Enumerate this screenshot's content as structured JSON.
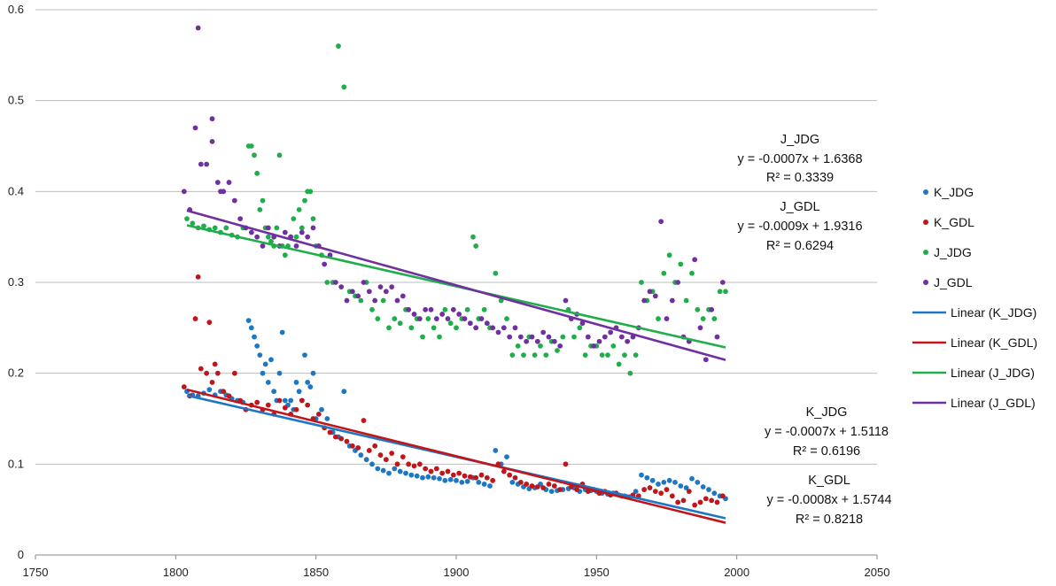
{
  "chart_data": {
    "type": "scatter",
    "title": "",
    "xlabel": "",
    "ylabel": "",
    "xlim": [
      1750,
      2050
    ],
    "ylim": [
      0,
      0.6
    ],
    "x_ticks": [
      1750,
      1800,
      1850,
      1900,
      1950,
      2000,
      2050
    ],
    "y_ticks": [
      0,
      0.1,
      0.2,
      0.3,
      0.4,
      0.5,
      0.6
    ],
    "x_tick_labels": [
      "1750",
      "1800",
      "1850",
      "1900",
      "1950",
      "2000",
      "2050"
    ],
    "y_tick_labels": [
      "0",
      "0.1",
      "0.2",
      "0.3",
      "0.4",
      "0.5",
      "0.6"
    ],
    "grid": "horizontal",
    "legend_position": "right",
    "series": [
      {
        "name": "K_JDG",
        "color": "#1f77c4",
        "x": [
          1804,
          1806,
          1808,
          1810,
          1812,
          1814,
          1816,
          1818,
          1820,
          1822,
          1824,
          1826,
          1827,
          1828,
          1829,
          1830,
          1831,
          1832,
          1833,
          1834,
          1835,
          1836,
          1837,
          1838,
          1839,
          1840,
          1841,
          1842,
          1843,
          1844,
          1845,
          1846,
          1847,
          1848,
          1849,
          1850,
          1852,
          1854,
          1856,
          1858,
          1860,
          1862,
          1864,
          1866,
          1868,
          1870,
          1872,
          1874,
          1876,
          1878,
          1880,
          1882,
          1884,
          1886,
          1888,
          1890,
          1892,
          1894,
          1896,
          1898,
          1900,
          1902,
          1904,
          1906,
          1908,
          1910,
          1912,
          1914,
          1916,
          1918,
          1920,
          1922,
          1924,
          1926,
          1928,
          1930,
          1932,
          1934,
          1936,
          1938,
          1940,
          1942,
          1944,
          1946,
          1948,
          1950,
          1952,
          1954,
          1956,
          1958,
          1960,
          1962,
          1964,
          1966,
          1968,
          1970,
          1972,
          1974,
          1976,
          1978,
          1980,
          1982,
          1984,
          1986,
          1988,
          1990,
          1992,
          1994,
          1996
        ],
        "y": [
          0.18,
          0.176,
          0.175,
          0.178,
          0.182,
          0.176,
          0.18,
          0.176,
          0.172,
          0.17,
          0.168,
          0.258,
          0.25,
          0.24,
          0.23,
          0.22,
          0.2,
          0.21,
          0.19,
          0.215,
          0.18,
          0.17,
          0.2,
          0.245,
          0.17,
          0.165,
          0.17,
          0.16,
          0.19,
          0.18,
          0.17,
          0.22,
          0.19,
          0.185,
          0.2,
          0.15,
          0.16,
          0.15,
          0.135,
          0.13,
          0.18,
          0.12,
          0.115,
          0.11,
          0.105,
          0.1,
          0.095,
          0.093,
          0.09,
          0.095,
          0.092,
          0.09,
          0.088,
          0.087,
          0.085,
          0.086,
          0.085,
          0.084,
          0.082,
          0.083,
          0.082,
          0.08,
          0.081,
          0.085,
          0.08,
          0.078,
          0.076,
          0.115,
          0.1,
          0.108,
          0.08,
          0.078,
          0.075,
          0.073,
          0.074,
          0.078,
          0.072,
          0.07,
          0.071,
          0.072,
          0.073,
          0.074,
          0.07,
          0.072,
          0.071,
          0.07,
          0.068,
          0.067,
          0.068,
          0.066,
          0.065,
          0.064,
          0.07,
          0.088,
          0.085,
          0.082,
          0.078,
          0.08,
          0.082,
          0.08,
          0.076,
          0.074,
          0.084,
          0.08,
          0.075,
          0.072,
          0.068,
          0.065,
          0.062
        ]
      },
      {
        "name": "K_GDL",
        "color": "#c0161b",
        "x": [
          1803,
          1805,
          1807,
          1809,
          1811,
          1813,
          1815,
          1817,
          1819,
          1821,
          1823,
          1825,
          1827,
          1829,
          1831,
          1833,
          1835,
          1837,
          1839,
          1841,
          1843,
          1845,
          1847,
          1849,
          1851,
          1853,
          1855,
          1857,
          1859,
          1861,
          1863,
          1865,
          1867,
          1869,
          1871,
          1873,
          1875,
          1877,
          1879,
          1881,
          1883,
          1885,
          1887,
          1889,
          1891,
          1893,
          1895,
          1897,
          1899,
          1901,
          1903,
          1905,
          1907,
          1909,
          1911,
          1913,
          1915,
          1917,
          1919,
          1921,
          1923,
          1925,
          1927,
          1929,
          1931,
          1933,
          1935,
          1937,
          1939,
          1941,
          1943,
          1945,
          1947,
          1949,
          1951,
          1953,
          1955,
          1957,
          1959,
          1961,
          1963,
          1965,
          1967,
          1969,
          1971,
          1973,
          1975,
          1977,
          1979,
          1981,
          1983,
          1985,
          1987,
          1989,
          1991,
          1993,
          1995,
          1808,
          1812,
          1814
        ],
        "y": [
          0.185,
          0.175,
          0.26,
          0.205,
          0.2,
          0.19,
          0.2,
          0.18,
          0.175,
          0.2,
          0.17,
          0.16,
          0.165,
          0.168,
          0.16,
          0.165,
          0.155,
          0.17,
          0.162,
          0.155,
          0.16,
          0.17,
          0.165,
          0.15,
          0.155,
          0.14,
          0.135,
          0.13,
          0.128,
          0.125,
          0.12,
          0.118,
          0.148,
          0.115,
          0.12,
          0.11,
          0.105,
          0.112,
          0.1,
          0.108,
          0.1,
          0.098,
          0.1,
          0.095,
          0.092,
          0.095,
          0.09,
          0.092,
          0.088,
          0.09,
          0.087,
          0.086,
          0.085,
          0.088,
          0.085,
          0.082,
          0.1,
          0.092,
          0.088,
          0.085,
          0.08,
          0.078,
          0.076,
          0.075,
          0.074,
          0.078,
          0.076,
          0.072,
          0.1,
          0.075,
          0.072,
          0.078,
          0.07,
          0.072,
          0.068,
          0.07,
          0.066,
          0.068,
          0.065,
          0.064,
          0.066,
          0.065,
          0.072,
          0.074,
          0.07,
          0.068,
          0.072,
          0.065,
          0.058,
          0.06,
          0.07,
          0.055,
          0.058,
          0.062,
          0.06,
          0.058,
          0.065,
          0.306,
          0.256,
          0.21
        ]
      },
      {
        "name": "J_JDG",
        "color": "#1fae4a",
        "x": [
          1804,
          1806,
          1808,
          1810,
          1812,
          1814,
          1816,
          1818,
          1820,
          1822,
          1824,
          1826,
          1827,
          1828,
          1829,
          1830,
          1831,
          1832,
          1833,
          1834,
          1835,
          1836,
          1837,
          1838,
          1839,
          1840,
          1841,
          1842,
          1843,
          1844,
          1845,
          1846,
          1847,
          1848,
          1849,
          1850,
          1852,
          1854,
          1856,
          1858,
          1860,
          1862,
          1864,
          1866,
          1868,
          1870,
          1872,
          1874,
          1876,
          1878,
          1880,
          1882,
          1884,
          1886,
          1888,
          1890,
          1892,
          1894,
          1896,
          1898,
          1900,
          1902,
          1904,
          1906,
          1907,
          1908,
          1910,
          1912,
          1914,
          1916,
          1918,
          1920,
          1922,
          1924,
          1926,
          1928,
          1930,
          1932,
          1934,
          1936,
          1938,
          1940,
          1942,
          1944,
          1946,
          1948,
          1950,
          1952,
          1954,
          1956,
          1958,
          1960,
          1962,
          1964,
          1966,
          1968,
          1970,
          1972,
          1974,
          1976,
          1978,
          1980,
          1982,
          1984,
          1986,
          1988,
          1990,
          1992,
          1994,
          1996
        ],
        "y": [
          0.37,
          0.365,
          0.36,
          0.362,
          0.358,
          0.36,
          0.355,
          0.36,
          0.352,
          0.35,
          0.36,
          0.45,
          0.45,
          0.44,
          0.42,
          0.38,
          0.39,
          0.36,
          0.35,
          0.345,
          0.34,
          0.36,
          0.44,
          0.34,
          0.33,
          0.34,
          0.35,
          0.37,
          0.35,
          0.38,
          0.36,
          0.39,
          0.4,
          0.4,
          0.37,
          0.34,
          0.33,
          0.3,
          0.3,
          0.56,
          0.515,
          0.29,
          0.285,
          0.28,
          0.3,
          0.27,
          0.26,
          0.28,
          0.25,
          0.26,
          0.255,
          0.27,
          0.25,
          0.26,
          0.24,
          0.26,
          0.25,
          0.24,
          0.27,
          0.255,
          0.25,
          0.26,
          0.27,
          0.35,
          0.34,
          0.26,
          0.27,
          0.25,
          0.31,
          0.28,
          0.26,
          0.22,
          0.23,
          0.22,
          0.24,
          0.22,
          0.23,
          0.22,
          0.235,
          0.225,
          0.24,
          0.27,
          0.24,
          0.25,
          0.22,
          0.23,
          0.23,
          0.22,
          0.22,
          0.23,
          0.21,
          0.22,
          0.2,
          0.22,
          0.3,
          0.28,
          0.29,
          0.26,
          0.31,
          0.33,
          0.3,
          0.32,
          0.28,
          0.31,
          0.27,
          0.26,
          0.27,
          0.26,
          0.29,
          0.29
        ]
      },
      {
        "name": "J_GDL",
        "color": "#7030a0",
        "x": [
          1803,
          1805,
          1807,
          1809,
          1811,
          1813,
          1815,
          1817,
          1819,
          1821,
          1823,
          1825,
          1827,
          1829,
          1831,
          1833,
          1835,
          1837,
          1839,
          1841,
          1843,
          1845,
          1847,
          1849,
          1851,
          1853,
          1855,
          1857,
          1859,
          1861,
          1863,
          1865,
          1867,
          1869,
          1871,
          1873,
          1875,
          1877,
          1879,
          1881,
          1883,
          1885,
          1887,
          1889,
          1891,
          1893,
          1895,
          1897,
          1899,
          1901,
          1903,
          1905,
          1907,
          1909,
          1911,
          1913,
          1915,
          1917,
          1919,
          1921,
          1923,
          1925,
          1927,
          1929,
          1931,
          1933,
          1935,
          1937,
          1939,
          1941,
          1943,
          1945,
          1947,
          1949,
          1951,
          1953,
          1955,
          1957,
          1959,
          1961,
          1963,
          1965,
          1967,
          1969,
          1971,
          1973,
          1975,
          1977,
          1979,
          1981,
          1983,
          1985,
          1987,
          1989,
          1991,
          1993,
          1995,
          1808,
          1813,
          1816
        ],
        "y": [
          0.4,
          0.38,
          0.47,
          0.43,
          0.43,
          0.48,
          0.41,
          0.4,
          0.41,
          0.39,
          0.37,
          0.36,
          0.355,
          0.35,
          0.34,
          0.36,
          0.35,
          0.34,
          0.355,
          0.35,
          0.34,
          0.355,
          0.35,
          0.36,
          0.34,
          0.32,
          0.33,
          0.3,
          0.295,
          0.28,
          0.29,
          0.285,
          0.3,
          0.29,
          0.28,
          0.295,
          0.29,
          0.295,
          0.28,
          0.285,
          0.27,
          0.265,
          0.26,
          0.27,
          0.27,
          0.26,
          0.265,
          0.26,
          0.27,
          0.265,
          0.26,
          0.255,
          0.25,
          0.26,
          0.255,
          0.25,
          0.245,
          0.25,
          0.24,
          0.25,
          0.24,
          0.235,
          0.24,
          0.235,
          0.245,
          0.24,
          0.235,
          0.23,
          0.28,
          0.26,
          0.265,
          0.255,
          0.24,
          0.23,
          0.235,
          0.24,
          0.245,
          0.25,
          0.24,
          0.235,
          0.24,
          0.25,
          0.28,
          0.29,
          0.285,
          0.367,
          0.26,
          0.28,
          0.3,
          0.24,
          0.235,
          0.325,
          0.25,
          0.215,
          0.27,
          0.24,
          0.3,
          0.58,
          0.455,
          0.4
        ]
      }
    ],
    "trendlines": [
      {
        "name": "Linear (K_JDG)",
        "color": "#1f77c4",
        "x": [
          1804,
          1996
        ],
        "y": [
          0.1756,
          0.0404
        ]
      },
      {
        "name": "Linear (K_GDL)",
        "color": "#c0161b",
        "x": [
          1804,
          1996
        ],
        "y": [
          0.182,
          0.0355
        ]
      },
      {
        "name": "Linear (J_JDG)",
        "color": "#1fae4a",
        "x": [
          1804,
          1996
        ],
        "y": [
          0.3628,
          0.2284
        ]
      },
      {
        "name": "Linear (J_GDL)",
        "color": "#7030a0",
        "x": [
          1804,
          1996
        ],
        "y": [
          0.379,
          0.2146
        ]
      }
    ],
    "legend": [
      {
        "label": "K_JDG",
        "kind": "marker",
        "color": "#1f77c4"
      },
      {
        "label": "K_GDL",
        "kind": "marker",
        "color": "#c0161b"
      },
      {
        "label": "J_JDG",
        "kind": "marker",
        "color": "#1fae4a"
      },
      {
        "label": "J_GDL",
        "kind": "marker",
        "color": "#7030a0"
      },
      {
        "label": "Linear (K_JDG)",
        "kind": "line",
        "color": "#1f77c4"
      },
      {
        "label": "Linear (K_GDL)",
        "kind": "line",
        "color": "#c0161b"
      },
      {
        "label": "Linear (J_JDG)",
        "kind": "line",
        "color": "#1fae4a"
      },
      {
        "label": "Linear (J_GDL)",
        "kind": "line",
        "color": "#7030a0"
      }
    ],
    "annotations": [
      {
        "id": "jjdg",
        "lines": [
          "J_JDG",
          "y = -0.0007x + 1.6368",
          "R² = 0.3339"
        ]
      },
      {
        "id": "jgdl",
        "lines": [
          "J_GDL",
          "y = -0.0009x + 1.9316",
          "R² = 0.6294"
        ]
      },
      {
        "id": "kjdg",
        "lines": [
          "K_JDG",
          "y = -0.0007x + 1.5118",
          "R² = 0.6196"
        ]
      },
      {
        "id": "kgdl",
        "lines": [
          "K_GDL",
          "y = -0.0008x + 1.5744",
          "R² = 0.8218"
        ]
      }
    ]
  }
}
